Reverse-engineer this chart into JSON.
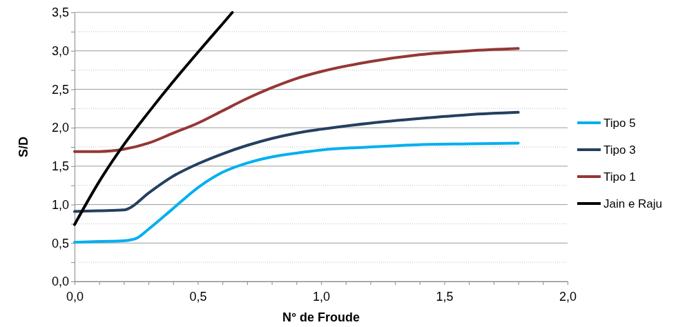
{
  "chart_data": {
    "type": "line",
    "xlabel": "N° de Froude",
    "ylabel": "S/D",
    "xlim": [
      0,
      2
    ],
    "ylim": [
      0,
      3.5
    ],
    "xticks": [
      {
        "value": 0,
        "label": "0,0"
      },
      {
        "value": 0.1,
        "label": null
      },
      {
        "value": 0.2,
        "label": null
      },
      {
        "value": 0.3,
        "label": null
      },
      {
        "value": 0.4,
        "label": null
      },
      {
        "value": 0.5,
        "label": "0,5"
      },
      {
        "value": 0.6,
        "label": null
      },
      {
        "value": 0.7,
        "label": null
      },
      {
        "value": 0.8,
        "label": null
      },
      {
        "value": 0.9,
        "label": null
      },
      {
        "value": 1,
        "label": "1,0"
      },
      {
        "value": 1.1,
        "label": null
      },
      {
        "value": 1.2,
        "label": null
      },
      {
        "value": 1.3,
        "label": null
      },
      {
        "value": 1.4,
        "label": null
      },
      {
        "value": 1.5,
        "label": "1,5"
      },
      {
        "value": 1.6,
        "label": null
      },
      {
        "value": 1.7,
        "label": null
      },
      {
        "value": 1.8,
        "label": null
      },
      {
        "value": 1.9,
        "label": null
      },
      {
        "value": 2,
        "label": "2,0"
      }
    ],
    "yticks": [
      {
        "value": 0,
        "label": "0,0"
      },
      {
        "value": 0.25,
        "label": null
      },
      {
        "value": 0.5,
        "label": "0,5"
      },
      {
        "value": 0.75,
        "label": null
      },
      {
        "value": 1,
        "label": "1,0"
      },
      {
        "value": 1.25,
        "label": null
      },
      {
        "value": 1.5,
        "label": "1,5"
      },
      {
        "value": 1.75,
        "label": null
      },
      {
        "value": 2,
        "label": "2,0"
      },
      {
        "value": 2.25,
        "label": null
      },
      {
        "value": 2.5,
        "label": "2,5"
      },
      {
        "value": 2.75,
        "label": null
      },
      {
        "value": 3,
        "label": "3,0"
      },
      {
        "value": 3.25,
        "label": null
      },
      {
        "value": 3.5,
        "label": "3,5"
      }
    ],
    "grid": "y",
    "legend": "right",
    "series": [
      {
        "name": "Tipo 5",
        "color": "#00b0f0",
        "x": [
          0,
          0.1,
          0.2,
          0.25,
          0.3,
          0.4,
          0.5,
          0.6,
          0.7,
          0.8,
          0.9,
          1,
          1.2,
          1.4,
          1.6,
          1.8
        ],
        "values": [
          0.51,
          0.52,
          0.53,
          0.56,
          0.68,
          0.95,
          1.22,
          1.42,
          1.54,
          1.62,
          1.67,
          1.71,
          1.75,
          1.78,
          1.79,
          1.8
        ]
      },
      {
        "name": "Tipo 3",
        "color": "#243f60",
        "x": [
          0,
          0.1,
          0.2,
          0.22,
          0.3,
          0.4,
          0.5,
          0.6,
          0.7,
          0.8,
          0.9,
          1,
          1.2,
          1.4,
          1.6,
          1.8
        ],
        "values": [
          0.91,
          0.92,
          0.93,
          0.95,
          1.15,
          1.37,
          1.53,
          1.66,
          1.77,
          1.86,
          1.93,
          1.98,
          2.06,
          2.12,
          2.17,
          2.2
        ]
      },
      {
        "name": "Tipo 1",
        "color": "#953735",
        "x": [
          0,
          0.1,
          0.2,
          0.3,
          0.4,
          0.5,
          0.6,
          0.7,
          0.8,
          0.9,
          1,
          1.2,
          1.4,
          1.6,
          1.8
        ],
        "values": [
          1.69,
          1.69,
          1.72,
          1.8,
          1.93,
          2.06,
          2.22,
          2.38,
          2.52,
          2.64,
          2.73,
          2.86,
          2.95,
          3,
          3.03
        ]
      },
      {
        "name": "Jain e Raju",
        "color": "#000000",
        "x": [
          0,
          0.1,
          0.2,
          0.3,
          0.4,
          0.5,
          0.6,
          0.64
        ],
        "values": [
          0.74,
          1.3,
          1.78,
          2.2,
          2.6,
          2.98,
          3.35,
          3.5
        ]
      }
    ]
  }
}
